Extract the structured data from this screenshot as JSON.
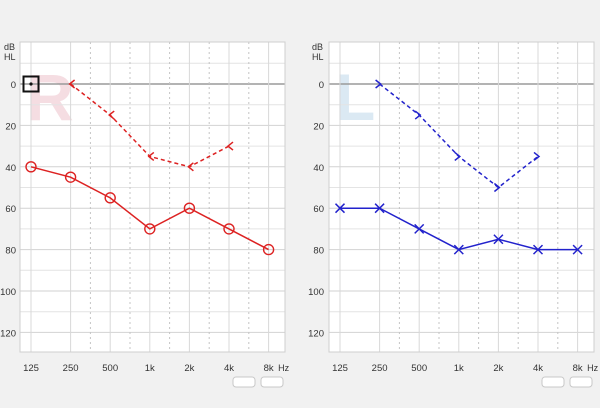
{
  "chart_data": [
    {
      "type": "line",
      "ear_label": "R",
      "db_label_line1": "dB",
      "db_label_line2": "HL",
      "hz_label": "Hz",
      "x_ticks": [
        "125",
        "250",
        "500",
        "1k",
        "2k",
        "4k",
        "8k"
      ],
      "y_ticks": [
        0,
        20,
        40,
        60,
        80,
        100,
        120
      ],
      "ylim": [
        -15,
        130
      ],
      "y_inverted": true,
      "grid": true,
      "series": [
        {
          "marker": "bracket-left",
          "style": "dashed",
          "color": "#dd2222",
          "x": [
            "250",
            "500",
            "1k",
            "2k",
            "4k"
          ],
          "values": [
            0,
            15,
            35,
            40,
            30
          ]
        },
        {
          "marker": "circle",
          "style": "solid",
          "color": "#dd2222",
          "x": [
            "125",
            "250",
            "500",
            "1k",
            "2k",
            "4k",
            "8k"
          ],
          "values": [
            40,
            45,
            55,
            70,
            60,
            70,
            80
          ]
        }
      ],
      "reference_marker": {
        "x": "125",
        "value": 0,
        "marker": "square-dot",
        "color": "#111111"
      },
      "watermark_color": "#f5dde2"
    },
    {
      "type": "line",
      "ear_label": "L",
      "db_label_line1": "dB",
      "db_label_line2": "HL",
      "hz_label": "Hz",
      "x_ticks": [
        "125",
        "250",
        "500",
        "1k",
        "2k",
        "4k",
        "8k"
      ],
      "y_ticks": [
        0,
        20,
        40,
        60,
        80,
        100,
        120
      ],
      "ylim": [
        -15,
        130
      ],
      "y_inverted": true,
      "grid": true,
      "series": [
        {
          "marker": "bracket-right",
          "style": "dashed",
          "color": "#2222cc",
          "x": [
            "250",
            "500",
            "1k",
            "2k",
            "4k"
          ],
          "values": [
            0,
            15,
            35,
            50,
            35
          ]
        },
        {
          "marker": "cross",
          "style": "solid",
          "color": "#2222cc",
          "x": [
            "125",
            "250",
            "500",
            "1k",
            "2k",
            "4k",
            "8k"
          ],
          "values": [
            60,
            60,
            70,
            80,
            75,
            80,
            80
          ]
        }
      ],
      "watermark_color": "#dbe9f3"
    }
  ]
}
